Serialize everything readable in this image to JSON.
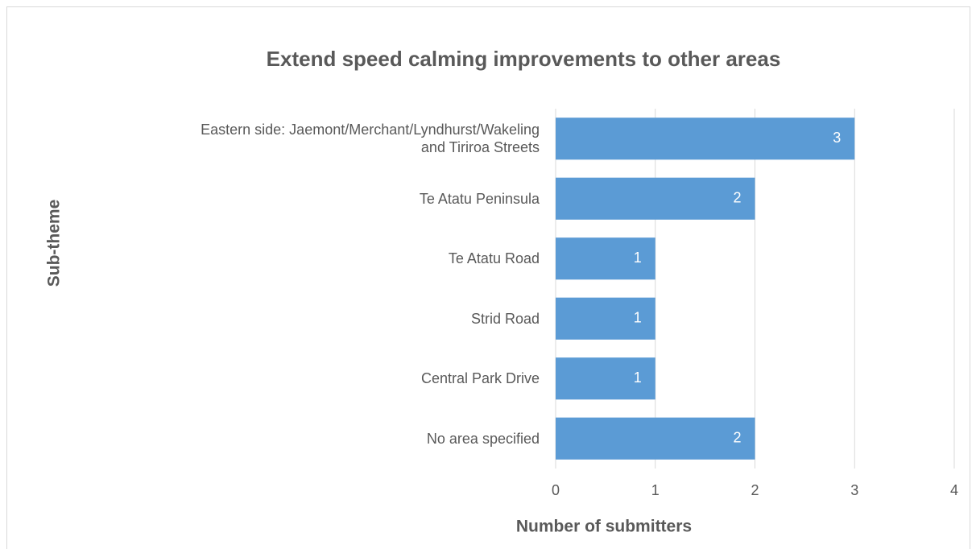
{
  "chart_data": {
    "type": "bar",
    "orientation": "horizontal",
    "title": "Extend speed calming improvements to other areas",
    "x_label": "Number of submitters",
    "y_label": "Sub-theme",
    "categories": [
      "Eastern side: Jaemont/Merchant/Lyndhurst/Wakeling\nand Tiriroa Streets",
      "Te Atatu Peninsula",
      "Te Atatu Road",
      "Strid Road",
      "Central Park Drive",
      "No area specified"
    ],
    "values": [
      3,
      2,
      1,
      1,
      1,
      2
    ],
    "color": "#5b9bd5",
    "xlim": [
      0,
      4
    ],
    "xticks": [
      0,
      1,
      2,
      3,
      4
    ],
    "grid": true
  }
}
